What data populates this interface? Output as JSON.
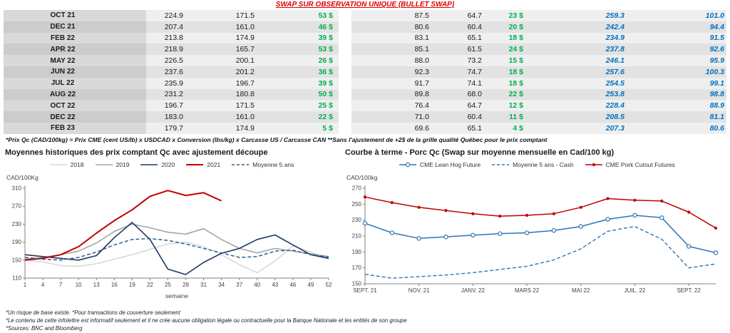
{
  "header": {
    "title": "SWAP SUR OBSERVATION UNIQUE (BULLET SWAP)",
    "title_color": "#e00000"
  },
  "table": {
    "rows": [
      {
        "month": "OCT 21",
        "qc_swap": "224.9",
        "qc_cash": "171.5",
        "qc_premium": "53 $",
        "us_swap": "87.5",
        "us_cash": "64.7",
        "us_premium": "23 $",
        "qc_adj": "259.3",
        "us_adj": "101.0"
      },
      {
        "month": "DEC 21",
        "qc_swap": "207.4",
        "qc_cash": "161.0",
        "qc_premium": "46 $",
        "us_swap": "80.6",
        "us_cash": "60.4",
        "us_premium": "20 $",
        "qc_adj": "242.4",
        "us_adj": "94.4"
      },
      {
        "month": "FEB 22",
        "qc_swap": "213.8",
        "qc_cash": "174.9",
        "qc_premium": "39 $",
        "us_swap": "83.1",
        "us_cash": "65.1",
        "us_premium": "18 $",
        "qc_adj": "234.9",
        "us_adj": "91.5"
      },
      {
        "month": "APR 22",
        "qc_swap": "218.9",
        "qc_cash": "165.7",
        "qc_premium": "53 $",
        "us_swap": "85.1",
        "us_cash": "61.5",
        "us_premium": "24 $",
        "qc_adj": "237.8",
        "us_adj": "92.6"
      },
      {
        "month": "MAY 22",
        "qc_swap": "226.5",
        "qc_cash": "200.1",
        "qc_premium": "26 $",
        "us_swap": "88.0",
        "us_cash": "73.2",
        "us_premium": "15 $",
        "qc_adj": "246.1",
        "us_adj": "95.9"
      },
      {
        "month": "JUN 22",
        "qc_swap": "237.6",
        "qc_cash": "201.2",
        "qc_premium": "36 $",
        "us_swap": "92.3",
        "us_cash": "74.7",
        "us_premium": "18 $",
        "qc_adj": "257.6",
        "us_adj": "100.3"
      },
      {
        "month": "JUL 22",
        "qc_swap": "235.9",
        "qc_cash": "196.7",
        "qc_premium": "39 $",
        "us_swap": "91.7",
        "us_cash": "74.1",
        "us_premium": "18 $",
        "qc_adj": "254.5",
        "us_adj": "99.1"
      },
      {
        "month": "AUG 22",
        "qc_swap": "231.2",
        "qc_cash": "180.8",
        "qc_premium": "50 $",
        "us_swap": "89.8",
        "us_cash": "68.0",
        "us_premium": "22 $",
        "qc_adj": "253.8",
        "us_adj": "98.8"
      },
      {
        "month": "OCT 22",
        "qc_swap": "196.7",
        "qc_cash": "171.5",
        "qc_premium": "25 $",
        "us_swap": "76.4",
        "us_cash": "64.7",
        "us_premium": "12 $",
        "qc_adj": "228.4",
        "us_adj": "88.9"
      },
      {
        "month": "DEC 22",
        "qc_swap": "183.0",
        "qc_cash": "161.0",
        "qc_premium": "22 $",
        "us_swap": "71.0",
        "us_cash": "60.4",
        "us_premium": "11 $",
        "qc_adj": "208.5",
        "us_adj": "81.1"
      },
      {
        "month": "FEB 23",
        "qc_swap": "179.7",
        "qc_cash": "174.9",
        "qc_premium": "5 $",
        "us_swap": "69.6",
        "us_cash": "65.1",
        "us_premium": "4 $",
        "qc_adj": "207.3",
        "us_adj": "80.6"
      }
    ],
    "footnote": "*Prix Qc (CAD/100kg) = Prix CME (cent US/lb) x USDCAD x Conversion (lbs/kg) x Carcasse US / Carcasse CAN **Sans l'ajustement de +2$ de la grille qualité Québec pour le prix comptant",
    "colors": {
      "positive_green": "#00B050",
      "blue_italic": "#0070C0"
    }
  },
  "chart_data": [
    {
      "type": "line",
      "title": "Moyennes historiques des prix comptant Qc avec ajustement découpe",
      "ylabel": "CAD/100Kg",
      "xlabel": "semaine",
      "ylim": [
        110,
        310
      ],
      "yticks": [
        110,
        150,
        190,
        230,
        270,
        310
      ],
      "x": [
        1,
        4,
        7,
        10,
        13,
        16,
        19,
        22,
        25,
        28,
        31,
        34,
        37,
        40,
        43,
        46,
        49,
        52
      ],
      "xtick_pos": [
        1,
        4,
        7,
        10,
        13,
        16,
        19,
        22,
        25,
        28,
        31,
        34,
        37,
        40,
        43,
        46,
        49,
        52
      ],
      "xtick_labels": [
        "1",
        "4",
        "7",
        "10",
        "13",
        "16",
        "19",
        "22",
        "25",
        "28",
        "31",
        "34",
        "37",
        "40",
        "43",
        "46",
        "49",
        "52"
      ],
      "series": [
        {
          "name": "2018",
          "color": "#d9d9d9",
          "style": "solid",
          "marker": "none",
          "width": 1.6,
          "values": [
            150,
            146,
            138,
            136,
            142,
            152,
            162,
            174,
            186,
            190,
            180,
            162,
            140,
            122,
            148,
            182,
            168,
            152
          ]
        },
        {
          "name": "2019",
          "color": "#a6a6a6",
          "style": "solid",
          "marker": "none",
          "width": 1.6,
          "values": [
            152,
            156,
            162,
            170,
            188,
            214,
            230,
            222,
            212,
            208,
            220,
            196,
            176,
            166,
            176,
            170,
            164,
            158
          ]
        },
        {
          "name": "2020",
          "color": "#1f3864",
          "style": "solid",
          "marker": "none",
          "width": 1.6,
          "values": [
            162,
            158,
            154,
            150,
            160,
            200,
            234,
            196,
            130,
            118,
            145,
            165,
            176,
            196,
            206,
            184,
            162,
            154
          ]
        },
        {
          "name": "2021",
          "color": "#c00000",
          "style": "solid",
          "marker": "none",
          "width": 2,
          "values": [
            150,
            154,
            162,
            180,
            210,
            238,
            262,
            292,
            305,
            294,
            300,
            282,
            null,
            null,
            null,
            null,
            null,
            null
          ]
        },
        {
          "name": "Moyenne 5 ans",
          "color": "#2e5f8a",
          "style": "dashed",
          "marker": "none",
          "width": 1.5,
          "values": [
            156,
            152,
            150,
            156,
            168,
            184,
            196,
            198,
            194,
            186,
            176,
            166,
            156,
            158,
            170,
            172,
            162,
            157
          ]
        }
      ]
    },
    {
      "type": "line",
      "title": "Courbe à terme - Porc Qc (Swap sur moyenne mensuelle en Cad/100 kg)",
      "ylabel": "CAD/100kg",
      "xlabel": "",
      "ylim": [
        150,
        270
      ],
      "yticks": [
        150,
        170,
        190,
        210,
        230,
        250,
        270
      ],
      "x": [
        0,
        1,
        2,
        3,
        4,
        5,
        6,
        7,
        8,
        9,
        10,
        11,
        12,
        13
      ],
      "xtick_pos": [
        0,
        2,
        4,
        6,
        8,
        10,
        12
      ],
      "xtick_labels": [
        "SEPT. 21",
        "NOV. 21",
        "JANV. 22",
        "MARS 22",
        "MAI 22",
        "JUIL. 22",
        "SEPT. 22"
      ],
      "series": [
        {
          "name": "CME Lean Hog Future",
          "color": "#2e75b6",
          "style": "solid",
          "marker": "circle",
          "width": 1.5,
          "values": [
            226,
            214,
            207,
            209,
            211,
            213,
            214,
            217,
            222,
            231,
            236,
            233,
            197,
            189
          ]
        },
        {
          "name": "Moyenne 5 ans - Cash",
          "color": "#2e75b6",
          "style": "dashed",
          "marker": "none",
          "width": 1.4,
          "values": [
            162,
            157,
            159,
            161,
            164,
            168,
            172,
            180,
            194,
            216,
            222,
            206,
            170,
            175
          ]
        },
        {
          "name": "CME Pork Cutout Futures",
          "color": "#c00000",
          "style": "solid",
          "marker": "dot",
          "width": 1.5,
          "values": [
            259,
            252,
            246,
            242,
            238,
            235,
            236,
            238,
            246,
            257,
            255,
            254,
            240,
            220
          ]
        }
      ]
    }
  ],
  "footer": {
    "lines": [
      "*Un risque de base existe. *Pour transactions de couverture seulement",
      "*Le contenu de cette infolettre est informatif seulement et il ne crée aucune obligation légale ou contractuelle pour la Banque Nationale et les entités de son groupe",
      "*Sources: BNC and Bloomberg"
    ]
  }
}
